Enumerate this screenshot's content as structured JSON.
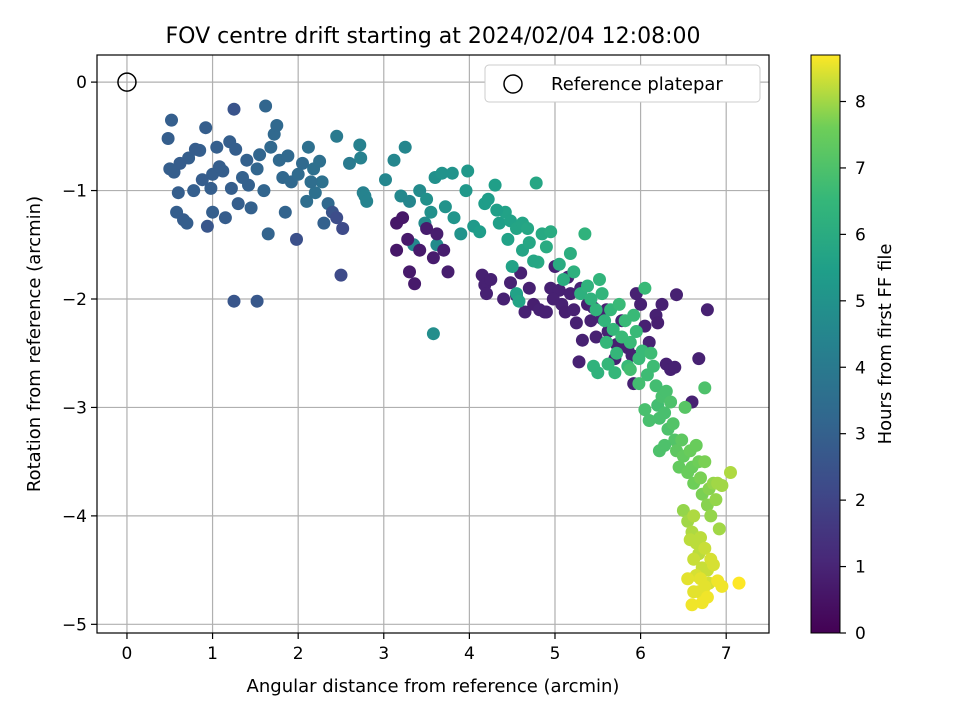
{
  "chart_data": {
    "type": "scatter",
    "title": "FOV centre drift starting at 2024/02/04 12:08:00",
    "xlabel": "Angular distance from reference (arcmin)",
    "ylabel": "Rotation from reference (arcmin)",
    "xlim": [
      -0.35,
      7.5
    ],
    "ylim": [
      -5.08,
      0.25
    ],
    "x_ticks": [
      0,
      1,
      2,
      3,
      4,
      5,
      6,
      7
    ],
    "y_ticks": [
      0,
      -1,
      -2,
      -3,
      -4,
      -5
    ],
    "grid": true,
    "legend": {
      "position": "top-right",
      "entries": [
        {
          "label": "Reference platepar",
          "marker": "open-circle"
        }
      ]
    },
    "reference_point": {
      "x": 0,
      "y": 0
    },
    "colorbar": {
      "label": "Hours from first FF file",
      "range": [
        0,
        8.7
      ],
      "ticks": [
        0,
        1,
        2,
        3,
        4,
        5,
        6,
        7,
        8
      ],
      "colormap": "viridis"
    },
    "points": [
      [
        1.0,
        -0.85,
        2.9
      ],
      [
        0.72,
        -0.7,
        2.9
      ],
      [
        0.52,
        -0.35,
        2.95
      ],
      [
        0.48,
        -0.52,
        2.9
      ],
      [
        0.55,
        -0.83,
        2.9
      ],
      [
        0.62,
        -0.75,
        2.85
      ],
      [
        0.6,
        -1.02,
        2.9
      ],
      [
        0.58,
        -1.2,
        2.9
      ],
      [
        0.66,
        -1.27,
        2.85
      ],
      [
        0.7,
        -1.3,
        2.9
      ],
      [
        0.78,
        -1.0,
        2.95
      ],
      [
        0.85,
        -0.63,
        2.95
      ],
      [
        0.8,
        -0.62,
        2.85
      ],
      [
        0.92,
        -0.42,
        2.9
      ],
      [
        0.98,
        -0.98,
        2.9
      ],
      [
        0.94,
        -1.33,
        2.6
      ],
      [
        1.0,
        -1.2,
        2.95
      ],
      [
        1.05,
        -0.6,
        2.95
      ],
      [
        1.12,
        -0.82,
        2.9
      ],
      [
        1.15,
        -1.25,
        2.85
      ],
      [
        1.2,
        -0.55,
        2.9
      ],
      [
        1.25,
        -0.25,
        2.55
      ],
      [
        1.27,
        -0.62,
        2.9
      ],
      [
        1.22,
        -0.98,
        2.9
      ],
      [
        1.3,
        -1.12,
        2.9
      ],
      [
        1.4,
        -0.72,
        3.0
      ],
      [
        1.42,
        -0.95,
        3.0
      ],
      [
        1.45,
        -1.16,
        3.0
      ],
      [
        1.52,
        -0.8,
        3.2
      ],
      [
        1.55,
        -0.67,
        3.2
      ],
      [
        1.62,
        -0.22,
        3.2
      ],
      [
        1.6,
        -1.0,
        3.15
      ],
      [
        1.65,
        -1.4,
        3.1
      ],
      [
        1.72,
        -0.48,
        3.3
      ],
      [
        1.75,
        -0.4,
        3.3
      ],
      [
        1.78,
        -0.72,
        3.3
      ],
      [
        1.82,
        -0.88,
        3.25
      ],
      [
        1.85,
        -1.2,
        3.1
      ],
      [
        1.92,
        -0.92,
        3.3
      ],
      [
        1.98,
        -1.45,
        2.4
      ],
      [
        2.05,
        -0.75,
        3.35
      ],
      [
        2.12,
        -0.6,
        3.6
      ],
      [
        2.18,
        -0.8,
        3.6
      ],
      [
        2.2,
        -1.02,
        3.6
      ],
      [
        2.1,
        -1.1,
        3.5
      ],
      [
        2.28,
        -0.92,
        3.65
      ],
      [
        2.35,
        -1.12,
        3.3
      ],
      [
        2.3,
        -1.3,
        3.0
      ],
      [
        2.4,
        -1.2,
        2.5
      ],
      [
        2.45,
        -1.25,
        2.3
      ],
      [
        2.52,
        -1.35,
        2.2
      ],
      [
        2.5,
        -1.78,
        2.2
      ],
      [
        2.6,
        -0.75,
        4.0
      ],
      [
        2.45,
        -0.5,
        4.0
      ],
      [
        2.72,
        -0.58,
        4.3
      ],
      [
        2.73,
        -0.7,
        4.3
      ],
      [
        2.76,
        -1.02,
        4.3
      ],
      [
        2.78,
        -1.05,
        4.4
      ],
      [
        2.8,
        -1.1,
        4.4
      ],
      [
        1.25,
        -2.02,
        2.6
      ],
      [
        1.52,
        -2.02,
        2.7
      ],
      [
        0.5,
        -0.8,
        2.9
      ],
      [
        0.88,
        -0.9,
        2.85
      ],
      [
        1.08,
        -0.78,
        2.9
      ],
      [
        1.35,
        -0.88,
        3.0
      ],
      [
        1.68,
        -0.6,
        3.3
      ],
      [
        1.88,
        -0.68,
        3.3
      ],
      [
        2.0,
        -0.85,
        3.4
      ],
      [
        2.15,
        -0.92,
        3.5
      ],
      [
        2.25,
        -0.73,
        3.6
      ],
      [
        3.02,
        -0.9,
        4.5
      ],
      [
        3.12,
        -0.72,
        4.5
      ],
      [
        3.2,
        -1.05,
        4.6
      ],
      [
        3.25,
        -0.6,
        4.5
      ],
      [
        3.3,
        -1.1,
        4.5
      ],
      [
        3.42,
        -1.0,
        4.7
      ],
      [
        3.5,
        -1.08,
        4.9
      ],
      [
        3.55,
        -1.2,
        4.9
      ],
      [
        3.6,
        -0.88,
        4.9
      ],
      [
        3.68,
        -0.84,
        5.0
      ],
      [
        3.72,
        -1.15,
        5.0
      ],
      [
        3.8,
        -0.84,
        5.0
      ],
      [
        3.82,
        -1.25,
        5.1
      ],
      [
        3.9,
        -1.4,
        5.0
      ],
      [
        3.96,
        -1.0,
        5.2
      ],
      [
        3.98,
        -0.82,
        5.2
      ],
      [
        4.05,
        -1.33,
        5.3
      ],
      [
        4.12,
        -1.38,
        5.4
      ],
      [
        4.18,
        -1.12,
        5.4
      ],
      [
        4.22,
        -1.08,
        5.4
      ],
      [
        4.3,
        -0.95,
        5.5
      ],
      [
        4.35,
        -1.3,
        5.5
      ],
      [
        4.42,
        -1.2,
        5.6
      ],
      [
        4.48,
        -1.28,
        5.6
      ],
      [
        4.55,
        -1.35,
        5.7
      ],
      [
        4.62,
        -1.3,
        5.7
      ],
      [
        4.68,
        -1.35,
        5.8
      ],
      [
        4.78,
        -0.93,
        5.8
      ],
      [
        4.8,
        -1.66,
        5.9
      ],
      [
        4.9,
        -1.52,
        6.0
      ],
      [
        3.58,
        -2.32,
        4.8
      ],
      [
        3.62,
        -1.5,
        4.7
      ],
      [
        3.35,
        -1.5,
        4.6
      ],
      [
        3.48,
        -1.3,
        4.7
      ],
      [
        3.15,
        -1.3,
        0.6
      ],
      [
        3.22,
        -1.25,
        0.6
      ],
      [
        3.15,
        -1.55,
        0.6
      ],
      [
        3.28,
        -1.45,
        0.7
      ],
      [
        3.3,
        -1.75,
        0.7
      ],
      [
        3.36,
        -1.86,
        0.7
      ],
      [
        3.42,
        -1.55,
        0.7
      ],
      [
        3.5,
        -1.35,
        0.75
      ],
      [
        3.58,
        -1.62,
        0.75
      ],
      [
        3.62,
        -1.4,
        0.8
      ],
      [
        3.7,
        -1.55,
        0.8
      ],
      [
        3.75,
        -1.75,
        0.8
      ],
      [
        4.15,
        -1.78,
        0.9
      ],
      [
        4.18,
        -1.87,
        0.9
      ],
      [
        4.2,
        -1.95,
        0.9
      ],
      [
        4.25,
        -1.82,
        0.9
      ],
      [
        4.4,
        -2.0,
        0.9
      ],
      [
        4.48,
        -1.85,
        0.9
      ],
      [
        4.55,
        -1.97,
        0.9
      ],
      [
        4.6,
        -1.76,
        0.9
      ],
      [
        4.7,
        -1.9,
        0.9
      ],
      [
        4.65,
        -2.12,
        0.9
      ],
      [
        4.75,
        -2.05,
        0.85
      ],
      [
        4.82,
        -2.1,
        0.9
      ],
      [
        4.88,
        -2.12,
        0.9
      ],
      [
        4.95,
        -1.9,
        0.9
      ],
      [
        5.0,
        -1.7,
        0.9
      ],
      [
        5.05,
        -1.92,
        0.9
      ],
      [
        5.08,
        -2.05,
        0.9
      ],
      [
        5.12,
        -2.12,
        0.85
      ],
      [
        5.15,
        -1.8,
        0.9
      ],
      [
        5.18,
        -1.95,
        0.9
      ],
      [
        5.22,
        -2.1,
        0.9
      ],
      [
        5.25,
        -2.22,
        0.9
      ],
      [
        5.3,
        -1.9,
        0.9
      ],
      [
        5.38,
        -2.05,
        0.85
      ],
      [
        5.42,
        -2.2,
        0.9
      ],
      [
        5.48,
        -2.35,
        0.9
      ],
      [
        5.55,
        -2.18,
        0.9
      ],
      [
        5.62,
        -2.3,
        0.9
      ],
      [
        5.7,
        -2.55,
        0.9
      ],
      [
        5.72,
        -2.42,
        0.85
      ],
      [
        5.78,
        -2.2,
        0.9
      ],
      [
        5.85,
        -2.45,
        0.9
      ],
      [
        5.9,
        -2.52,
        0.9
      ],
      [
        5.95,
        -1.95,
        0.9
      ],
      [
        6.0,
        -2.05,
        0.9
      ],
      [
        6.05,
        -2.25,
        0.9
      ],
      [
        6.1,
        -2.4,
        0.9
      ],
      [
        6.18,
        -2.15,
        0.9
      ],
      [
        6.2,
        -2.22,
        0.85
      ],
      [
        6.25,
        -2.05,
        0.9
      ],
      [
        6.3,
        -2.6,
        0.9
      ],
      [
        6.35,
        -2.65,
        0.9
      ],
      [
        6.4,
        -2.63,
        0.9
      ],
      [
        6.42,
        -1.96,
        0.9
      ],
      [
        6.68,
        -2.55,
        0.9
      ],
      [
        6.78,
        -2.1,
        0.9
      ],
      [
        6.6,
        -2.95,
        0.9
      ],
      [
        5.92,
        -2.78,
        0.9
      ],
      [
        5.28,
        -2.58,
        0.9
      ],
      [
        5.32,
        -2.38,
        0.9
      ],
      [
        4.9,
        -2.12,
        0.9
      ],
      [
        4.98,
        -2.0,
        0.9
      ],
      [
        5.45,
        -2.08,
        0.9
      ],
      [
        5.6,
        -2.1,
        0.9
      ],
      [
        4.32,
        -1.18,
        5.5
      ],
      [
        4.45,
        -1.45,
        5.6
      ],
      [
        4.5,
        -1.7,
        5.6
      ],
      [
        4.55,
        -1.95,
        5.6
      ],
      [
        4.58,
        -2.02,
        5.7
      ],
      [
        4.62,
        -1.55,
        5.7
      ],
      [
        4.7,
        -1.48,
        5.8
      ],
      [
        4.75,
        -1.65,
        5.8
      ],
      [
        4.85,
        -1.4,
        5.9
      ],
      [
        4.95,
        -1.38,
        6.0
      ],
      [
        5.05,
        -1.68,
        6.0
      ],
      [
        5.1,
        -1.82,
        6.1
      ],
      [
        5.18,
        -1.58,
        6.1
      ],
      [
        5.22,
        -1.75,
        6.2
      ],
      [
        5.3,
        -1.95,
        6.2
      ],
      [
        5.35,
        -1.4,
        6.3
      ],
      [
        5.38,
        -1.88,
        6.3
      ],
      [
        5.42,
        -2.0,
        6.3
      ],
      [
        5.48,
        -2.1,
        6.4
      ],
      [
        5.52,
        -1.82,
        6.4
      ],
      [
        5.55,
        -1.95,
        6.4
      ],
      [
        5.58,
        -2.2,
        6.4
      ],
      [
        5.6,
        -2.4,
        6.5
      ],
      [
        5.62,
        -2.6,
        6.5
      ],
      [
        5.65,
        -2.1,
        6.5
      ],
      [
        5.68,
        -2.28,
        6.5
      ],
      [
        5.72,
        -2.5,
        6.5
      ],
      [
        5.75,
        -2.05,
        6.6
      ],
      [
        5.78,
        -2.35,
        6.6
      ],
      [
        5.82,
        -2.2,
        6.6
      ],
      [
        5.85,
        -2.62,
        6.6
      ],
      [
        5.88,
        -2.4,
        6.6
      ],
      [
        5.92,
        -2.15,
        6.6
      ],
      [
        5.95,
        -2.3,
        6.6
      ],
      [
        5.98,
        -2.55,
        6.6
      ],
      [
        6.02,
        -2.48,
        6.6
      ],
      [
        6.05,
        -1.9,
        6.6
      ],
      [
        6.08,
        -2.7,
        6.7
      ],
      [
        6.12,
        -2.5,
        6.7
      ],
      [
        6.15,
        -2.62,
        6.7
      ],
      [
        6.18,
        -2.8,
        6.8
      ],
      [
        6.2,
        -2.98,
        6.8
      ],
      [
        6.22,
        -3.1,
        6.9
      ],
      [
        6.25,
        -2.9,
        6.9
      ],
      [
        6.28,
        -3.05,
        6.9
      ],
      [
        6.3,
        -2.85,
        6.9
      ],
      [
        6.32,
        -3.2,
        7.0
      ],
      [
        6.35,
        -2.95,
        7.0
      ],
      [
        6.38,
        -3.15,
        7.1
      ],
      [
        6.4,
        -3.3,
        7.1
      ],
      [
        6.05,
        -3.02,
        6.9
      ],
      [
        6.1,
        -3.12,
        6.9
      ],
      [
        6.22,
        -3.4,
        7.0
      ],
      [
        6.28,
        -3.35,
        7.0
      ],
      [
        5.98,
        -2.78,
        6.8
      ],
      [
        5.88,
        -2.65,
        6.8
      ],
      [
        5.7,
        -2.68,
        6.5
      ],
      [
        5.5,
        -2.68,
        6.3
      ],
      [
        5.45,
        -2.62,
        6.3
      ],
      [
        6.75,
        -2.82,
        7.0
      ],
      [
        6.42,
        -3.4,
        7.3
      ],
      [
        6.45,
        -3.55,
        7.4
      ],
      [
        6.48,
        -3.3,
        7.3
      ],
      [
        6.5,
        -3.45,
        7.4
      ],
      [
        6.52,
        -3.0,
        7.2
      ],
      [
        6.55,
        -3.6,
        7.5
      ],
      [
        6.58,
        -3.4,
        7.5
      ],
      [
        6.6,
        -3.55,
        7.5
      ],
      [
        6.62,
        -3.7,
        7.6
      ],
      [
        6.65,
        -3.35,
        7.5
      ],
      [
        6.68,
        -3.5,
        7.6
      ],
      [
        6.7,
        -3.65,
        7.7
      ],
      [
        6.72,
        -3.8,
        7.7
      ],
      [
        6.75,
        -3.5,
        7.7
      ],
      [
        6.78,
        -3.9,
        7.8
      ],
      [
        6.8,
        -3.75,
        7.8
      ],
      [
        6.82,
        -4.0,
        7.9
      ],
      [
        6.85,
        -3.7,
        7.9
      ],
      [
        6.88,
        -3.85,
        7.9
      ],
      [
        6.9,
        -3.7,
        8.0
      ],
      [
        6.92,
        -4.12,
        8.0
      ],
      [
        6.95,
        -3.72,
        8.0
      ],
      [
        7.05,
        -3.6,
        8.1
      ],
      [
        6.5,
        -3.95,
        7.9
      ],
      [
        6.55,
        -4.05,
        8.0
      ],
      [
        6.6,
        -4.15,
        8.1
      ],
      [
        6.62,
        -4.0,
        8.1
      ],
      [
        6.65,
        -4.25,
        8.2
      ],
      [
        6.68,
        -4.35,
        8.2
      ],
      [
        6.7,
        -4.2,
        8.2
      ],
      [
        6.72,
        -4.48,
        8.3
      ],
      [
        6.75,
        -4.3,
        8.3
      ],
      [
        6.78,
        -4.5,
        8.3
      ],
      [
        6.8,
        -4.62,
        8.4
      ],
      [
        6.82,
        -4.4,
        8.4
      ],
      [
        6.58,
        -4.22,
        8.2
      ],
      [
        6.62,
        -4.4,
        8.3
      ],
      [
        6.65,
        -4.55,
        8.4
      ],
      [
        6.68,
        -4.7,
        8.5
      ],
      [
        6.7,
        -4.58,
        8.5
      ],
      [
        6.72,
        -4.8,
        8.6
      ],
      [
        6.6,
        -4.82,
        8.6
      ],
      [
        6.62,
        -4.7,
        8.5
      ],
      [
        6.55,
        -4.58,
        8.5
      ],
      [
        6.75,
        -4.65,
        8.5
      ],
      [
        6.78,
        -4.75,
        8.6
      ],
      [
        6.9,
        -4.6,
        8.6
      ],
      [
        6.95,
        -4.65,
        8.6
      ],
      [
        7.15,
        -4.62,
        8.7
      ],
      [
        6.85,
        -4.45,
        8.4
      ]
    ]
  }
}
